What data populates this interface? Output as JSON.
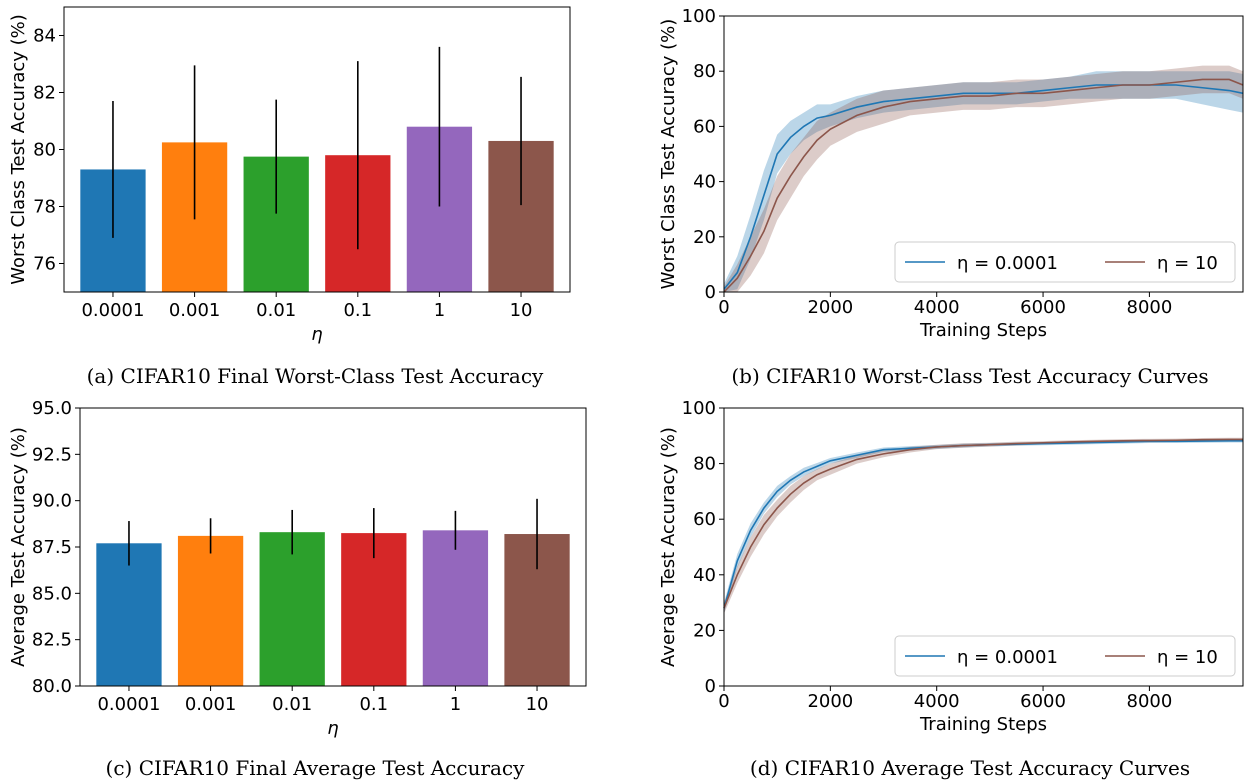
{
  "colors": {
    "bars": [
      "#1f77b4",
      "#ff7f0e",
      "#2ca02c",
      "#d62728",
      "#9467bd",
      "#8c564b"
    ],
    "line_a": "#1f77b4",
    "line_b": "#8c564b"
  },
  "chart_data": [
    {
      "type": "bar",
      "caption": "(a) CIFAR10 Final Worst-Class Test Accuracy",
      "categories": [
        "0.0001",
        "0.001",
        "0.01",
        "0.1",
        "1",
        "10"
      ],
      "values": [
        79.3,
        80.25,
        79.75,
        79.8,
        80.8,
        80.3
      ],
      "errors": [
        2.4,
        2.7,
        2.0,
        3.3,
        2.8,
        2.25
      ],
      "xlabel": "η",
      "ylabel": "Worst Class Test Accuracy (%)",
      "ylim": [
        75,
        85
      ],
      "yticks": [
        "76",
        "78",
        "80",
        "82",
        "84"
      ],
      "grid": false
    },
    {
      "type": "line",
      "caption": "(b) CIFAR10 Worst-Class Test Accuracy Curves",
      "xlabel": "Training Steps",
      "ylabel": "Worst Class Test Accuracy (%)",
      "xlim": [
        0,
        9760
      ],
      "ylim": [
        0,
        100
      ],
      "xticks": [
        "0",
        "2000",
        "4000",
        "6000",
        "8000"
      ],
      "yticks": [
        "0",
        "20",
        "40",
        "60",
        "80",
        "100"
      ],
      "legend": "lower-right",
      "x": [
        0,
        250,
        500,
        750,
        1000,
        1250,
        1500,
        1750,
        2000,
        2500,
        3000,
        3500,
        4000,
        4500,
        5000,
        5500,
        6000,
        6500,
        7000,
        7500,
        8000,
        8500,
        9000,
        9500,
        9760
      ],
      "series": [
        {
          "name": "η = 0.0001",
          "values": [
            1,
            7,
            20,
            35,
            50,
            56,
            60,
            63,
            64,
            67,
            69,
            70,
            71,
            72,
            72,
            72,
            73,
            74,
            75,
            75,
            75,
            75,
            74,
            73,
            72
          ],
          "spread": [
            2,
            6,
            8,
            9,
            7,
            6,
            5,
            5,
            4,
            4,
            4,
            4,
            4,
            4,
            4,
            4,
            4,
            4,
            5,
            5,
            5,
            5,
            6,
            7,
            7
          ]
        },
        {
          "name": "η = 10",
          "values": [
            0,
            5,
            13,
            22,
            34,
            42,
            49,
            55,
            59,
            64,
            67,
            69,
            70,
            71,
            71,
            72,
            72,
            73,
            74,
            75,
            75,
            76,
            77,
            77,
            75
          ],
          "spread": [
            2,
            5,
            7,
            8,
            8,
            8,
            7,
            7,
            6,
            6,
            6,
            5,
            5,
            5,
            5,
            5,
            5,
            5,
            5,
            5,
            5,
            5,
            5,
            5,
            5
          ]
        }
      ]
    },
    {
      "type": "bar",
      "caption": "(c) CIFAR10 Final Average Test Accuracy",
      "categories": [
        "0.0001",
        "0.001",
        "0.01",
        "0.1",
        "1",
        "10"
      ],
      "values": [
        87.7,
        88.1,
        88.3,
        88.25,
        88.4,
        88.2
      ],
      "errors": [
        1.2,
        0.95,
        1.2,
        1.35,
        1.05,
        1.9
      ],
      "xlabel": "η",
      "ylabel": "Average Test Accuracy (%)",
      "ylim": [
        80,
        95
      ],
      "yticks": [
        "80.0",
        "82.5",
        "85.0",
        "87.5",
        "90.0",
        "92.5",
        "95.0"
      ],
      "grid": false
    },
    {
      "type": "line",
      "caption": "(d) CIFAR10 Average Test Accuracy Curves",
      "xlabel": "Training Steps",
      "ylabel": "Average Test Accuracy (%)",
      "xlim": [
        0,
        9760
      ],
      "ylim": [
        0,
        100
      ],
      "xticks": [
        "0",
        "2000",
        "4000",
        "6000",
        "8000"
      ],
      "yticks": [
        "0",
        "20",
        "40",
        "60",
        "80",
        "100"
      ],
      "legend": "lower-right",
      "x": [
        0,
        250,
        500,
        750,
        1000,
        1250,
        1500,
        1750,
        2000,
        2500,
        3000,
        3500,
        4000,
        4500,
        5000,
        5500,
        6000,
        6500,
        7000,
        7500,
        8000,
        8500,
        9000,
        9500,
        9760
      ],
      "series": [
        {
          "name": "η = 0.0001",
          "values": [
            28,
            45,
            56,
            64,
            70,
            74,
            77,
            79,
            81,
            83,
            85,
            85.5,
            86,
            86.5,
            86.8,
            87,
            87.2,
            87.4,
            87.6,
            87.8,
            88,
            88,
            88.1,
            88.2,
            88.2
          ],
          "spread": [
            2,
            2.5,
            2.5,
            2,
            2,
            1.5,
            1.5,
            1.2,
            1,
            1,
            0.8,
            0.8,
            0.7,
            0.7,
            0.6,
            0.6,
            0.6,
            0.6,
            0.6,
            0.6,
            0.6,
            0.6,
            0.6,
            0.6,
            0.6
          ]
        },
        {
          "name": "η = 10",
          "values": [
            28,
            40,
            50,
            58,
            64,
            69,
            73,
            76,
            78,
            81.5,
            83.5,
            85,
            86,
            86.5,
            86.8,
            87.2,
            87.5,
            87.8,
            88,
            88.2,
            88.3,
            88.4,
            88.6,
            88.7,
            88.7
          ],
          "spread": [
            2,
            3,
            3.5,
            3.5,
            3,
            3,
            2.5,
            2,
            2,
            1.5,
            1.2,
            1,
            0.8,
            0.8,
            0.7,
            0.7,
            0.6,
            0.6,
            0.6,
            0.6,
            0.6,
            0.6,
            0.6,
            0.6,
            0.6
          ]
        }
      ]
    }
  ]
}
